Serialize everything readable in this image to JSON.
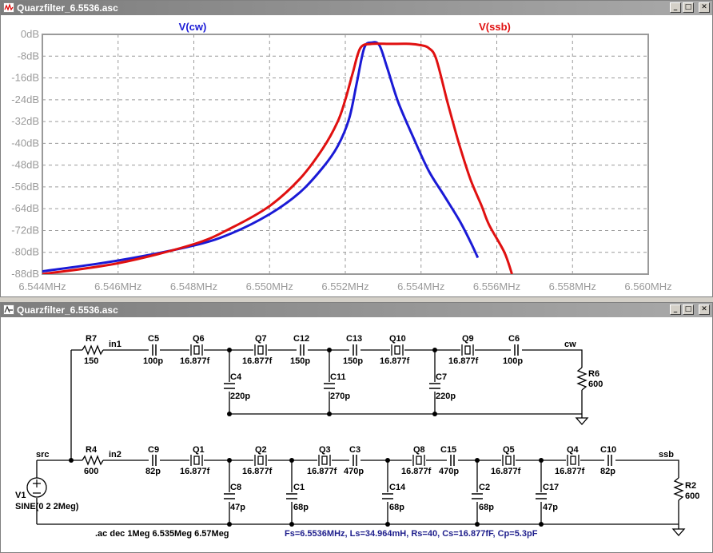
{
  "plot_window": {
    "title": "Quarzfilter_6.5536.asc",
    "buttons": {
      "minimize": "_",
      "maximize": "□",
      "close": "✕"
    }
  },
  "schematic_window": {
    "title": "Quarzfilter_6.5536.asc",
    "buttons": {
      "minimize": "_",
      "maximize": "□",
      "close": "✕"
    }
  },
  "colors": {
    "cw_trace": "#1a1ad6",
    "ssb_trace": "#e01010",
    "grid": "#9a9a9a",
    "axis_text": "#9a9a9a",
    "wire": "#000000",
    "label_blue": "#1e1e8c"
  },
  "chart_data": {
    "type": "line",
    "x_unit": "MHz",
    "xlim": [
      6.544,
      6.56
    ],
    "ylim": [
      -88,
      0
    ],
    "grid": true,
    "x_ticks": [
      "6.544MHz",
      "6.546MHz",
      "6.548MHz",
      "6.550MHz",
      "6.552MHz",
      "6.554MHz",
      "6.556MHz",
      "6.558MHz",
      "6.560MHz"
    ],
    "x_tick_values": [
      6.544,
      6.546,
      6.548,
      6.55,
      6.552,
      6.554,
      6.556,
      6.558,
      6.56
    ],
    "y_ticks": [
      "0dB",
      "-8dB",
      "-16dB",
      "-24dB",
      "-32dB",
      "-40dB",
      "-48dB",
      "-56dB",
      "-64dB",
      "-72dB",
      "-80dB",
      "-88dB"
    ],
    "y_tick_values": [
      0,
      -8,
      -16,
      -24,
      -32,
      -40,
      -48,
      -56,
      -64,
      -72,
      -80,
      -88
    ],
    "series": [
      {
        "name": "V(cw)",
        "color": "#1a1ad6",
        "x": [
          6.544,
          6.546,
          6.548,
          6.549,
          6.55,
          6.5508,
          6.5514,
          6.5518,
          6.5521,
          6.5523,
          6.5525,
          6.5527,
          6.5529,
          6.5531,
          6.5534,
          6.5538,
          6.5542,
          6.5546,
          6.555,
          6.5553,
          6.5555
        ],
        "y": [
          -87,
          -83,
          -77.5,
          -73,
          -66,
          -58,
          -49,
          -41,
          -31,
          -18,
          -5,
          -3,
          -4,
          -12,
          -25,
          -38,
          -50,
          -59,
          -68,
          -76,
          -82
        ]
      },
      {
        "name": "V(ssb)",
        "color": "#e01010",
        "x": [
          6.544,
          6.546,
          6.548,
          6.549,
          6.55,
          6.5508,
          6.5514,
          6.5518,
          6.552,
          6.5522,
          6.5524,
          6.5527,
          6.5532,
          6.5537,
          6.554,
          6.5542,
          6.5544,
          6.5547,
          6.555,
          6.5553,
          6.5556,
          6.5558,
          6.5562,
          6.5564
        ],
        "y": [
          -88,
          -84,
          -77,
          -71,
          -63,
          -53,
          -42,
          -32,
          -24,
          -14,
          -5,
          -3.5,
          -3.5,
          -3.5,
          -4,
          -5,
          -9,
          -25,
          -40,
          -53,
          -63,
          -70,
          -80,
          -88
        ]
      }
    ]
  },
  "schematic": {
    "nets": {
      "in1": "in1",
      "cw": "cw",
      "src": "src",
      "in2": "in2",
      "ssb": "ssb"
    },
    "cw_path": {
      "R7": {
        "ref": "R7",
        "val": "150"
      },
      "C5": {
        "ref": "C5",
        "val": "100p"
      },
      "Q6": {
        "ref": "Q6",
        "val": "16.877f"
      },
      "Q7": {
        "ref": "Q7",
        "val": "16.877f"
      },
      "C12": {
        "ref": "C12",
        "val": "150p"
      },
      "C13": {
        "ref": "C13",
        "val": "150p"
      },
      "Q10": {
        "ref": "Q10",
        "val": "16.877f"
      },
      "Q9": {
        "ref": "Q9",
        "val": "16.877f"
      },
      "C6": {
        "ref": "C6",
        "val": "100p"
      },
      "C4": {
        "ref": "C4",
        "val": "220p"
      },
      "C11": {
        "ref": "C11",
        "val": "270p"
      },
      "C7": {
        "ref": "C7",
        "val": "220p"
      },
      "R6": {
        "ref": "R6",
        "val": "600"
      }
    },
    "ssb_path": {
      "R4": {
        "ref": "R4",
        "val": "600"
      },
      "C9": {
        "ref": "C9",
        "val": "82p"
      },
      "Q1": {
        "ref": "Q1",
        "val": "16.877f"
      },
      "Q2": {
        "ref": "Q2",
        "val": "16.877f"
      },
      "Q3": {
        "ref": "Q3",
        "val": "16.877f"
      },
      "C3": {
        "ref": "C3",
        "val": "470p"
      },
      "Q8": {
        "ref": "Q8",
        "val": "16.877f"
      },
      "C15": {
        "ref": "C15",
        "val": "470p"
      },
      "Q5": {
        "ref": "Q5",
        "val": "16.877f"
      },
      "Q4": {
        "ref": "Q4",
        "val": "16.877f"
      },
      "C10": {
        "ref": "C10",
        "val": "82p"
      },
      "C8": {
        "ref": "C8",
        "val": "47p"
      },
      "C1": {
        "ref": "C1",
        "val": "68p"
      },
      "C14": {
        "ref": "C14",
        "val": "68p"
      },
      "C2": {
        "ref": "C2",
        "val": "68p"
      },
      "C17": {
        "ref": "C17",
        "val": "47p"
      },
      "R2": {
        "ref": "R2",
        "val": "600"
      }
    },
    "source": {
      "ref": "V1",
      "val": "SINE(0 2 2Meg)"
    },
    "directive": ".ac dec 1Meg 6.535Meg 6.57Meg",
    "crystal_note": "Fs=6.5536MHz, Ls=34.964mH, Rs=40, Cs=16.877fF, Cp=5.3pF"
  }
}
